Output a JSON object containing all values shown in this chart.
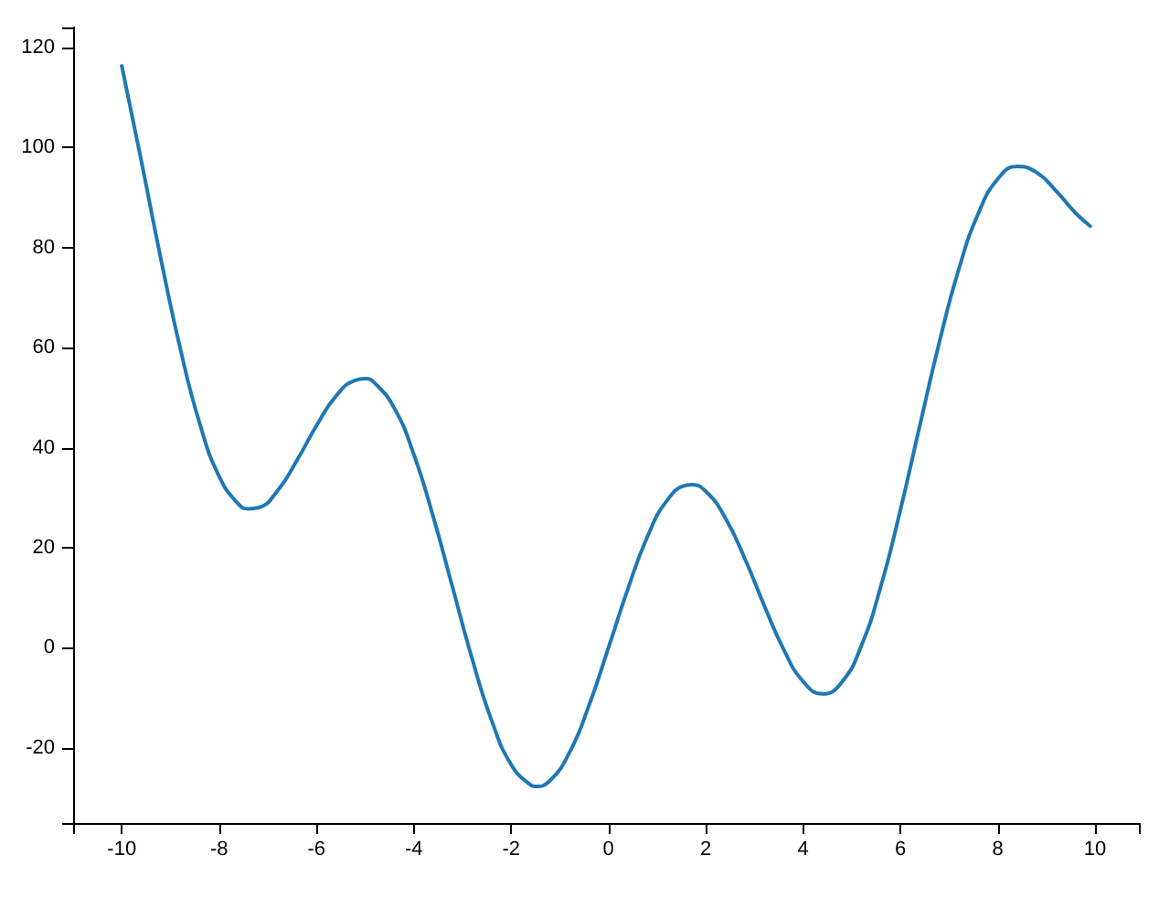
{
  "chart_data": {
    "type": "line",
    "x": [
      -10,
      -9.6,
      -9.2,
      -8.8,
      -8.4,
      -8,
      -7.6,
      -7.4,
      -7.2,
      -6.8,
      -6.4,
      -6,
      -5.6,
      -5.2,
      -5,
      -4.8,
      -4.4,
      -4,
      -3.6,
      -3.2,
      -2.8,
      -2.4,
      -2,
      -1.6,
      -1.5,
      -1.2,
      -0.8,
      -0.4,
      0,
      0.4,
      0.8,
      1.2,
      1.6,
      1.7,
      2,
      2.4,
      2.8,
      3.2,
      3.6,
      4,
      4.4,
      4.8,
      5.2,
      5.6,
      6,
      6.4,
      6.8,
      7.2,
      7.6,
      8,
      8.4,
      8.8,
      9.2,
      9.6,
      9.9
    ],
    "series": [
      {
        "color": "#1f77b4",
        "values": [
          116.3,
          97.4,
          77.9,
          59.9,
          44.9,
          34.3,
          28.7,
          27.8,
          28,
          31.4,
          37.5,
          44.4,
          50.3,
          53.5,
          53.8,
          52.9,
          47.9,
          38.7,
          26.2,
          12,
          -2.2,
          -14.5,
          -23.3,
          -27.4,
          -27.7,
          -26.5,
          -20.9,
          -11.5,
          0,
          11.8,
          22.2,
          29.4,
          32.5,
          32.6,
          31.3,
          26,
          17.9,
          8.5,
          -0.3,
          -6.7,
          -9.2,
          -6.8,
          0.5,
          12.4,
          27.6,
          44.5,
          61.1,
          75.7,
          86.8,
          93.7,
          96.2,
          95,
          91.3,
          86.9,
          84.3
        ]
      }
    ],
    "xlim": [
      -11,
      10.9
    ],
    "xticks": [
      {
        "value": -11,
        "label": null
      },
      -10,
      -8,
      -6,
      -4,
      -2,
      0,
      2,
      4,
      6,
      8,
      10,
      {
        "value": 10.9,
        "label": null
      }
    ],
    "ylim": [
      -35,
      124
    ],
    "yticks": [
      {
        "value": -35,
        "label": null
      },
      -20,
      0,
      20,
      40,
      60,
      80,
      100,
      120,
      {
        "value": 124,
        "label": null
      }
    ],
    "marker": "none",
    "line_style": "solid"
  }
}
